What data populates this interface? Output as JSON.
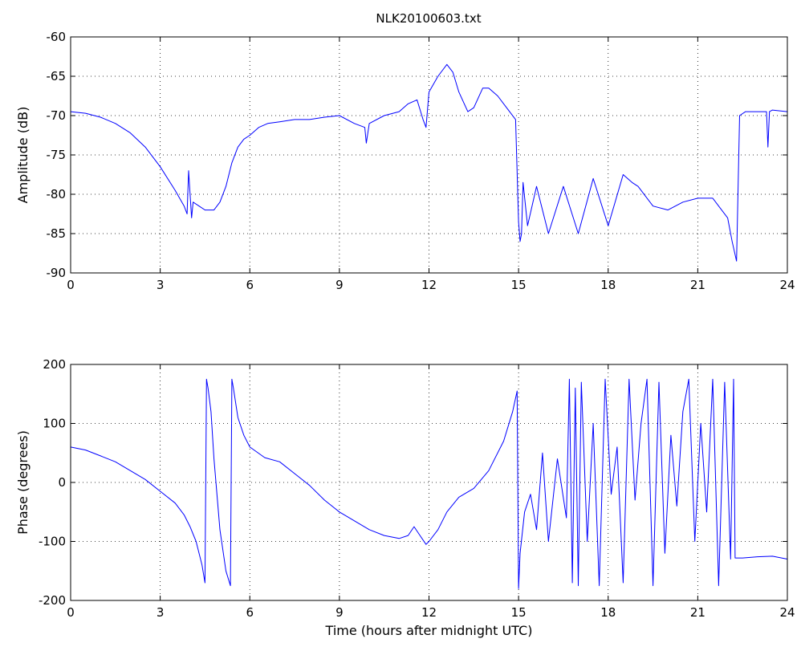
{
  "figure": {
    "title": "NLK20100603.txt"
  },
  "colors": {
    "trace": "#0000ff",
    "axes": "#000000",
    "background": "#ffffff"
  },
  "chart_data": [
    {
      "type": "line",
      "title": "NLK20100603.txt",
      "xlabel": "",
      "ylabel": "Amplitude (dB)",
      "xlim": [
        0,
        24
      ],
      "ylim": [
        -90,
        -60
      ],
      "xticks": [
        "0",
        "3",
        "6",
        "9",
        "12",
        "15",
        "18",
        "21",
        "24"
      ],
      "yticks": [
        "-90",
        "-85",
        "-80",
        "-75",
        "-70",
        "-65",
        "-60"
      ],
      "grid": true,
      "series": [
        {
          "x": [
            0,
            0.5,
            1,
            1.5,
            2,
            2.5,
            3,
            3.5,
            3.8,
            3.9,
            3.95,
            4.05,
            4.1,
            4.3,
            4.5,
            4.8,
            5.0,
            5.2,
            5.4,
            5.6,
            5.8,
            6.0,
            6.3,
            6.6,
            7.0,
            7.5,
            8.0,
            8.5,
            9.0,
            9.5,
            9.85,
            9.9,
            10.0,
            10.5,
            11.0,
            11.3,
            11.6,
            11.8,
            11.9,
            12.0,
            12.3,
            12.6,
            12.8,
            13.0,
            13.3,
            13.5,
            13.8,
            14.0,
            14.3,
            14.6,
            14.9,
            15.0,
            15.05,
            15.1,
            15.15,
            15.3,
            15.6,
            16.0,
            16.5,
            17.0,
            17.5,
            18.0,
            18.5,
            18.8,
            19.0,
            19.5,
            20.0,
            20.5,
            21.0,
            21.5,
            21.8,
            22.0,
            22.15,
            22.3,
            22.4,
            22.6,
            23.0,
            23.3,
            23.35,
            23.4,
            23.5,
            24.0
          ],
          "y": [
            -69.5,
            -69.7,
            -70.2,
            -71.0,
            -72.2,
            -74.0,
            -76.5,
            -79.5,
            -81.5,
            -82.5,
            -77.0,
            -83.0,
            -81.0,
            -81.5,
            -82.0,
            -82.0,
            -81.0,
            -79.0,
            -76.0,
            -74.0,
            -73.0,
            -72.5,
            -71.5,
            -71.0,
            -70.8,
            -70.5,
            -70.5,
            -70.2,
            -70.0,
            -71.0,
            -71.5,
            -73.5,
            -71.0,
            -70.0,
            -69.5,
            -68.5,
            -68.0,
            -70.5,
            -71.5,
            -67.0,
            -65.0,
            -63.5,
            -64.5,
            -67.0,
            -69.5,
            -69.0,
            -66.5,
            -66.5,
            -67.5,
            -69.0,
            -70.5,
            -83.5,
            -86.0,
            -85.0,
            -78.5,
            -84.0,
            -79.0,
            -85.0,
            -79.0,
            -85.0,
            -78.0,
            -84.0,
            -77.5,
            -78.5,
            -79.0,
            -81.5,
            -82.0,
            -81.0,
            -80.5,
            -80.5,
            -82.0,
            -83.0,
            -86.0,
            -88.5,
            -70.0,
            -69.5,
            -69.5,
            -69.5,
            -74.0,
            -69.5,
            -69.3,
            -69.5
          ]
        }
      ]
    },
    {
      "type": "line",
      "title": "",
      "xlabel": "Time (hours after midnight UTC)",
      "ylabel": "Phase (degrees)",
      "xlim": [
        0,
        24
      ],
      "ylim": [
        -200,
        200
      ],
      "xticks": [
        "0",
        "3",
        "6",
        "9",
        "12",
        "15",
        "18",
        "21",
        "24"
      ],
      "yticks": [
        "-200",
        "-100",
        "0",
        "100",
        "200"
      ],
      "grid": true,
      "series": [
        {
          "x": [
            0,
            0.5,
            1,
            1.5,
            2,
            2.5,
            3,
            3.5,
            3.8,
            4.0,
            4.2,
            4.4,
            4.5,
            4.55,
            4.6,
            4.7,
            4.8,
            5.0,
            5.2,
            5.35,
            5.4,
            5.45,
            5.6,
            5.8,
            6.0,
            6.5,
            7.0,
            7.5,
            8.0,
            8.5,
            9.0,
            9.5,
            10.0,
            10.5,
            11.0,
            11.3,
            11.5,
            11.7,
            11.9,
            12.0,
            12.3,
            12.6,
            13.0,
            13.5,
            14.0,
            14.5,
            14.8,
            14.95,
            15.0,
            15.05,
            15.2,
            15.4,
            15.6,
            15.8,
            16.0,
            16.3,
            16.6,
            16.7,
            16.8,
            16.9,
            17.0,
            17.1,
            17.3,
            17.5,
            17.7,
            17.9,
            18.1,
            18.3,
            18.5,
            18.7,
            18.9,
            19.1,
            19.3,
            19.5,
            19.7,
            19.9,
            20.1,
            20.3,
            20.5,
            20.7,
            20.9,
            21.1,
            21.3,
            21.5,
            21.7,
            21.9,
            22.1,
            22.2,
            22.25,
            22.5,
            23.0,
            23.5,
            24.0
          ],
          "y": [
            60,
            55,
            45,
            35,
            20,
            5,
            -15,
            -35,
            -55,
            -75,
            -100,
            -140,
            -170,
            175,
            160,
            120,
            40,
            -80,
            -150,
            -175,
            175,
            160,
            110,
            80,
            60,
            42,
            35,
            15,
            -5,
            -30,
            -50,
            -65,
            -80,
            -90,
            -95,
            -90,
            -75,
            -90,
            -105,
            -100,
            -80,
            -50,
            -25,
            -10,
            20,
            70,
            120,
            155,
            -180,
            -120,
            -50,
            -20,
            -80,
            50,
            -100,
            40,
            -60,
            175,
            -170,
            160,
            -175,
            170,
            -100,
            100,
            -175,
            175,
            -20,
            60,
            -170,
            175,
            -30,
            100,
            175,
            -175,
            170,
            -120,
            80,
            -40,
            120,
            175,
            -100,
            100,
            -50,
            175,
            -175,
            170,
            -130,
            175,
            -128,
            -128,
            -126,
            -125,
            -130
          ]
        }
      ]
    }
  ]
}
